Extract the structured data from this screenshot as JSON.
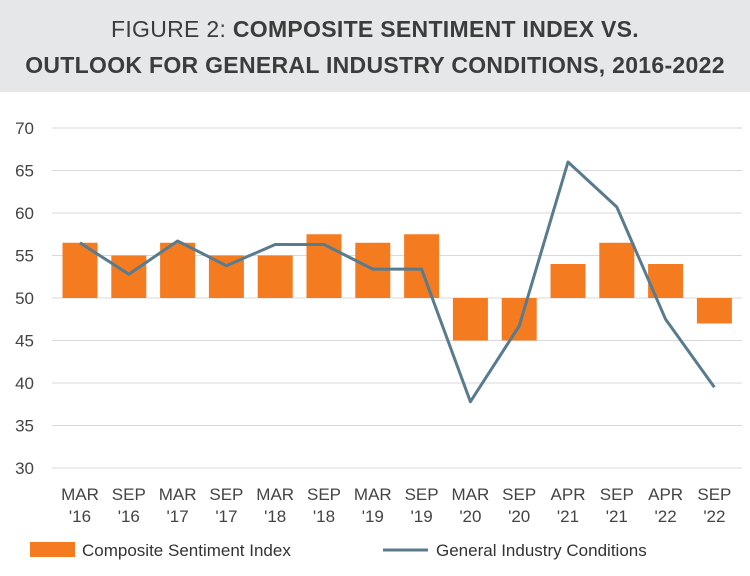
{
  "title": {
    "prefix": "FIGURE 2:",
    "main_line1": "COMPOSITE SENTIMENT INDEX VS.",
    "main_line2": "OUTLOOK FOR GENERAL INDUSTRY CONDITIONS, 2016-2022"
  },
  "colors": {
    "bar": "#f47b20",
    "line": "#587b8e",
    "grid": "#d9d9d9",
    "title_bg": "#e6e7e8"
  },
  "chart_data": {
    "type": "bar",
    "title": "FIGURE 2: COMPOSITE SENTIMENT INDEX VS. OUTLOOK FOR GENERAL INDUSTRY CONDITIONS, 2016-2022",
    "categories": [
      [
        "MAR",
        "'16"
      ],
      [
        "SEP",
        "'16"
      ],
      [
        "MAR",
        "'17"
      ],
      [
        "SEP",
        "'17"
      ],
      [
        "MAR",
        "'18"
      ],
      [
        "SEP",
        "'18"
      ],
      [
        "MAR",
        "'19"
      ],
      [
        "SEP",
        "'19"
      ],
      [
        "MAR",
        "'20"
      ],
      [
        "SEP",
        "'20"
      ],
      [
        "APR",
        "'21"
      ],
      [
        "SEP",
        "'21"
      ],
      [
        "APR",
        "'22"
      ],
      [
        "SEP",
        "'22"
      ]
    ],
    "baseline": 50,
    "ylim": [
      30,
      70
    ],
    "yticks": [
      30,
      35,
      40,
      45,
      50,
      55,
      60,
      65,
      70
    ],
    "grid": true,
    "legend_position": "bottom",
    "series": [
      {
        "name": "Composite Sentiment Index",
        "kind": "bar",
        "values": [
          56.5,
          55,
          56.5,
          55,
          55,
          57.5,
          56.5,
          57.5,
          45,
          45,
          54,
          56.5,
          54,
          47
        ]
      },
      {
        "name": "General Industry Conditions",
        "kind": "line",
        "values": [
          56.5,
          52.8,
          56.7,
          53.8,
          56.3,
          56.3,
          53.4,
          53.4,
          37.8,
          46.7,
          66,
          60.7,
          47.5,
          39.5
        ]
      }
    ]
  }
}
